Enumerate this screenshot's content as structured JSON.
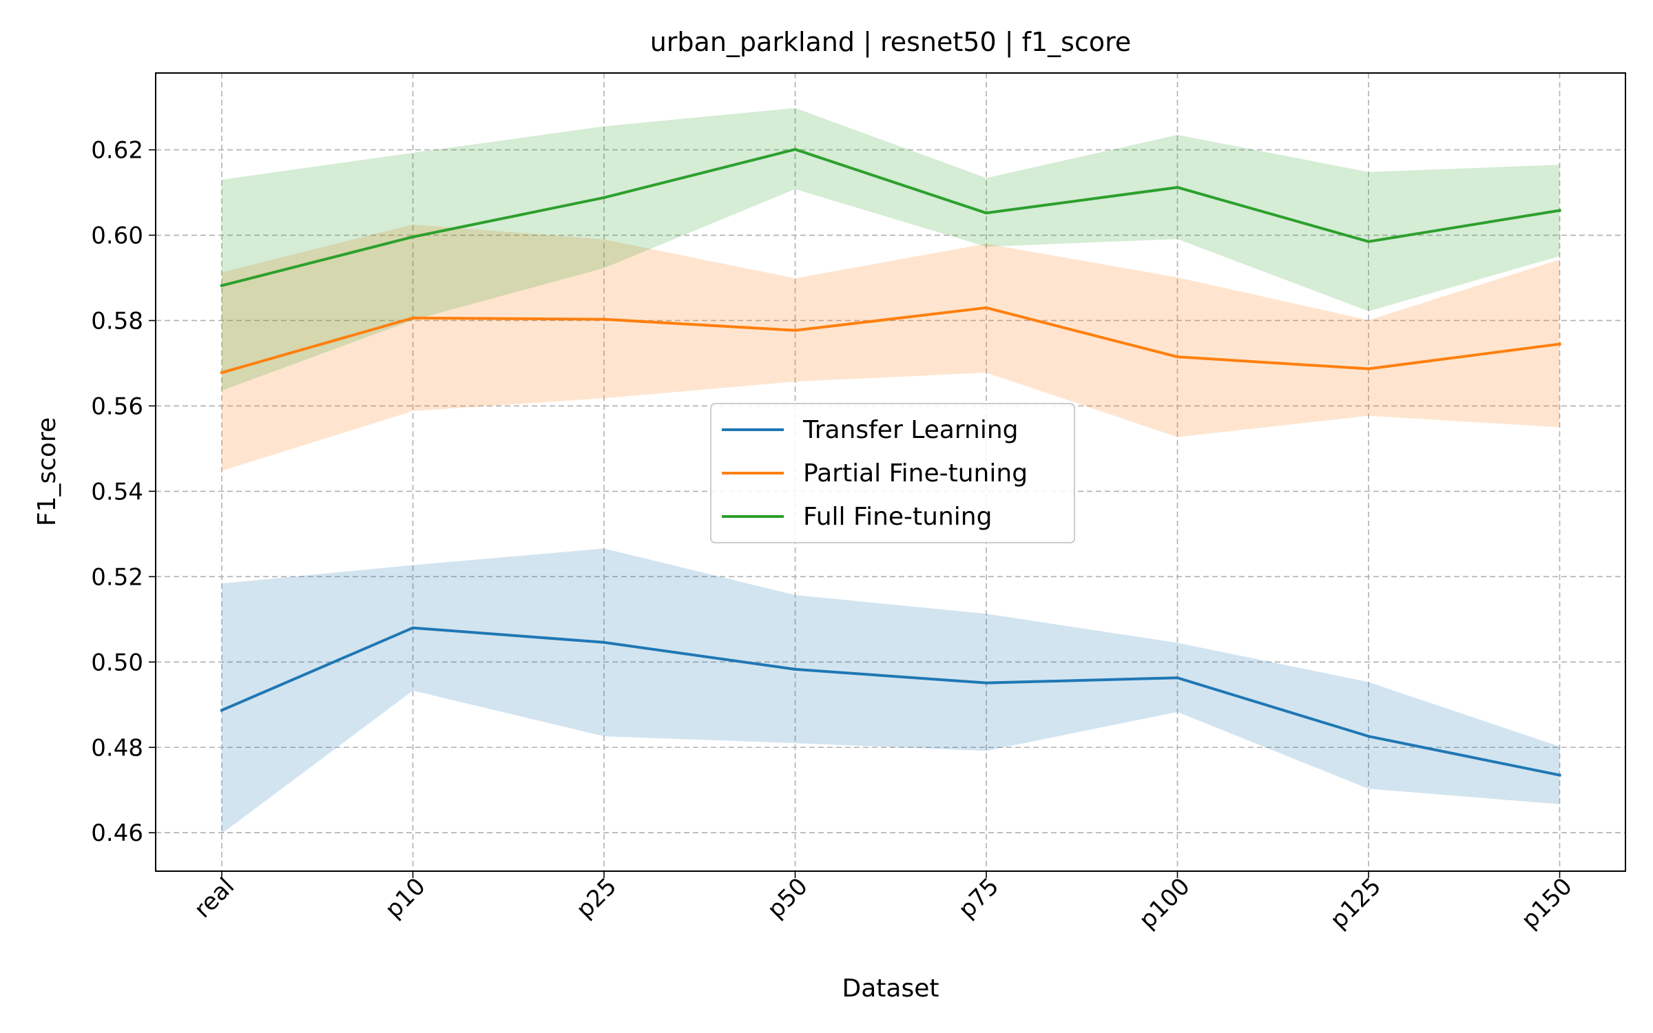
{
  "chart_data": {
    "type": "line",
    "title": "urban_parkland | resnet50 | f1_score",
    "xlabel": "Dataset",
    "ylabel": "F1_score",
    "categories": [
      "real",
      "p10",
      "p25",
      "p50",
      "p75",
      "p100",
      "p125",
      "p150"
    ],
    "ylim": [
      0.451,
      0.638
    ],
    "yticks": [
      0.46,
      0.48,
      0.5,
      0.52,
      0.54,
      0.56,
      0.58,
      0.6,
      0.62
    ],
    "ytick_labels": [
      "0.46",
      "0.48",
      "0.50",
      "0.52",
      "0.54",
      "0.56",
      "0.58",
      "0.60",
      "0.62"
    ],
    "grid": true,
    "legend_position": "center",
    "series": [
      {
        "name": "Transfer Learning",
        "color": "#1f77b4",
        "values": [
          0.4887,
          0.508,
          0.5046,
          0.4983,
          0.4951,
          0.4963,
          0.4826,
          0.4735
        ],
        "lower": [
          0.4598,
          0.4933,
          0.4826,
          0.481,
          0.4792,
          0.4883,
          0.4703,
          0.4667
        ],
        "upper": [
          0.5184,
          0.5227,
          0.5266,
          0.5157,
          0.5113,
          0.5045,
          0.4953,
          0.4802
        ]
      },
      {
        "name": "Partial Fine-tuning",
        "color": "#ff7f0e",
        "values": [
          0.5678,
          0.5806,
          0.5803,
          0.5777,
          0.583,
          0.5715,
          0.5687,
          0.5745
        ],
        "lower": [
          0.5448,
          0.5588,
          0.5618,
          0.5657,
          0.5678,
          0.5527,
          0.5577,
          0.555
        ],
        "upper": [
          0.5913,
          0.6025,
          0.599,
          0.5899,
          0.598,
          0.5901,
          0.5801,
          0.5943
        ]
      },
      {
        "name": "Full Fine-tuning",
        "color": "#2ca02c",
        "values": [
          0.5882,
          0.5996,
          0.6088,
          0.6201,
          0.6052,
          0.6112,
          0.5985,
          0.6058
        ],
        "lower": [
          0.5636,
          0.5801,
          0.5923,
          0.6108,
          0.5973,
          0.5991,
          0.5822,
          0.5951
        ],
        "upper": [
          0.613,
          0.6193,
          0.6255,
          0.6298,
          0.6134,
          0.6235,
          0.6148,
          0.6165
        ]
      }
    ]
  }
}
